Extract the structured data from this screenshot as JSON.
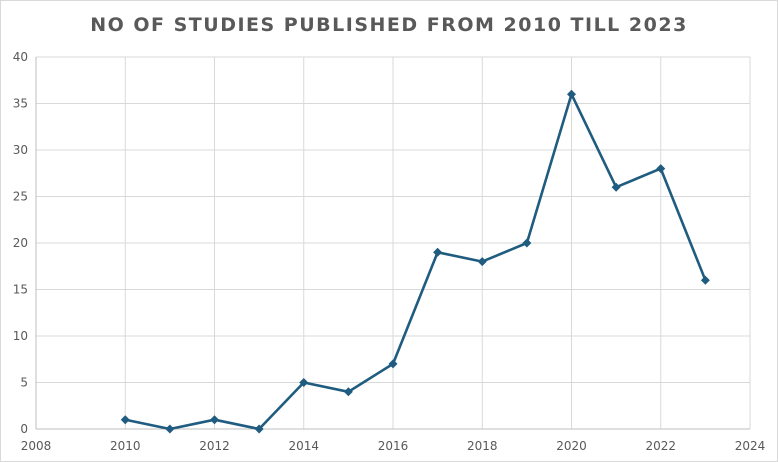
{
  "chart_data": {
    "type": "scatter",
    "title": "NO OF STUDIES PUBLISHED  FROM 2010 TILL 2023",
    "xlabel": "",
    "ylabel": "",
    "xlim": [
      2008,
      2024
    ],
    "ylim": [
      0,
      40
    ],
    "xticks": [
      2008,
      2010,
      2012,
      2014,
      2016,
      2018,
      2020,
      2022,
      2024
    ],
    "yticks": [
      0,
      5,
      10,
      15,
      20,
      25,
      30,
      35,
      40
    ],
    "grid": true,
    "legend": "none",
    "series": [
      {
        "x": [
          2010,
          2011,
          2012,
          2013,
          2014,
          2015,
          2016,
          2017,
          2018,
          2019,
          2020,
          2021,
          2022,
          2023
        ],
        "y": [
          1,
          0,
          1,
          0,
          5,
          4,
          7,
          19,
          18,
          20,
          36,
          26,
          28,
          16
        ],
        "color": "#1f5c7f",
        "marker": "diamond",
        "line": true
      }
    ]
  }
}
